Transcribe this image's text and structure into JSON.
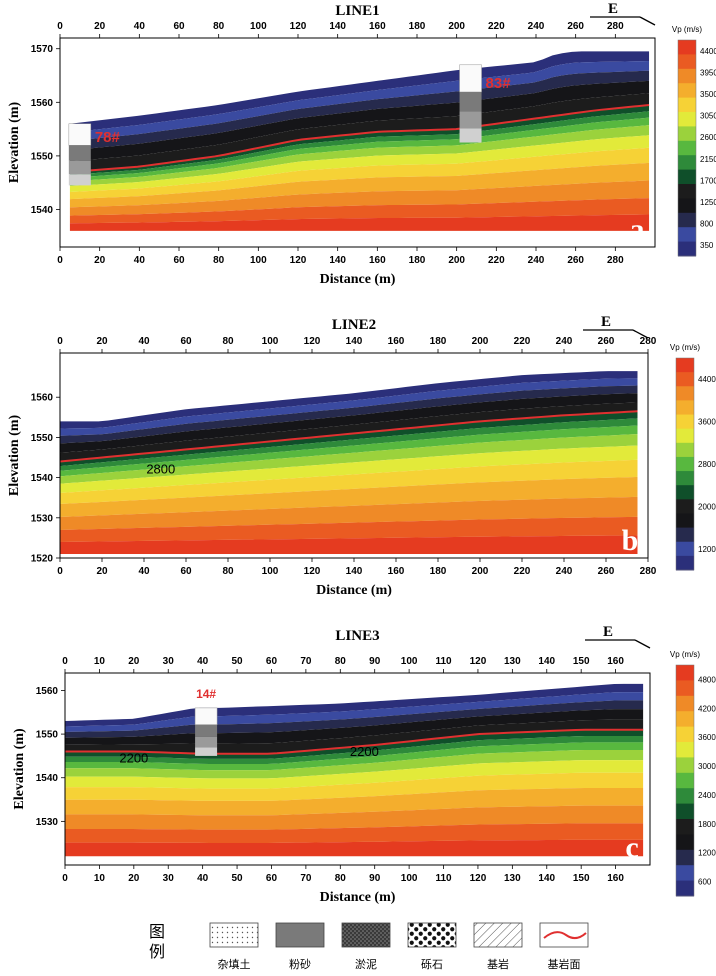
{
  "palette": [
    "#2b2f7a",
    "#3a4aa0",
    "#262a4d",
    "#151518",
    "#1c1c1c",
    "#0f4f2a",
    "#2e8a3a",
    "#58b83f",
    "#9bd23c",
    "#e2ea3a",
    "#f6d236",
    "#f4ae2d",
    "#ef8a27",
    "#ea5b22",
    "#e53b20"
  ],
  "boundary_color": "#e03030",
  "direction_label": "E",
  "chart_data": [
    {
      "type": "heatmap",
      "panel": "a",
      "title": "LINE1",
      "xlabel": "Distance (m)",
      "ylabel": "Elevation (m)",
      "xlim": [
        0,
        300
      ],
      "ylim": [
        1533,
        1572
      ],
      "xticks": [
        0,
        20,
        40,
        60,
        80,
        100,
        120,
        140,
        160,
        180,
        200,
        220,
        240,
        260,
        280
      ],
      "yticks": [
        1540,
        1550,
        1560,
        1570
      ],
      "colorbar_title": "Vp (m/s)",
      "colorbar_ticks": [
        "4400",
        "3950",
        "3500",
        "3050",
        "2600",
        "2150",
        "1700",
        "1250",
        "800",
        "350"
      ],
      "surface": {
        "x": [
          5,
          40,
          80,
          120,
          160,
          200,
          240,
          250,
          260,
          297
        ],
        "y": [
          1556,
          1557.5,
          1559.5,
          1562,
          1564,
          1566,
          1567.5,
          1569,
          1569.5,
          1569.5
        ]
      },
      "bedrock": {
        "x": [
          5,
          40,
          80,
          120,
          160,
          200,
          240,
          270,
          297
        ],
        "y": [
          1547,
          1548,
          1550,
          1553,
          1554.5,
          1555,
          1557,
          1558.5,
          1559.5
        ]
      },
      "bottom": {
        "x": [
          5,
          297
        ],
        "y": [
          1536,
          1536
        ]
      },
      "contour_label": "",
      "boreholes": [
        {
          "label": "78#",
          "x": 10,
          "top": 1556,
          "bottom": 1544.5
        },
        {
          "label": "83#",
          "x": 207,
          "top": 1567,
          "bottom": 1552.5
        }
      ]
    },
    {
      "type": "heatmap",
      "panel": "b",
      "title": "LINE2",
      "xlabel": "Distance (m)",
      "ylabel": "Elevation (m)",
      "xlim": [
        0,
        280
      ],
      "ylim": [
        1520,
        1571
      ],
      "xticks": [
        0,
        20,
        40,
        60,
        80,
        100,
        120,
        140,
        160,
        180,
        200,
        220,
        240,
        260,
        280
      ],
      "yticks": [
        1520,
        1530,
        1540,
        1550,
        1560
      ],
      "colorbar_title": "Vp (m/s)",
      "colorbar_ticks": [
        "4400",
        "3600",
        "2800",
        "2000",
        "1200"
      ],
      "surface": {
        "x": [
          0,
          20,
          60,
          100,
          140,
          180,
          220,
          260,
          275
        ],
        "y": [
          1554,
          1554,
          1557,
          1559,
          1561,
          1563.5,
          1565.5,
          1566.5,
          1566.5
        ]
      },
      "bedrock": {
        "x": [
          0,
          40,
          80,
          120,
          160,
          200,
          240,
          275
        ],
        "y": [
          1544,
          1546,
          1548,
          1550,
          1552,
          1554,
          1555.5,
          1556.5
        ]
      },
      "bottom": {
        "x": [
          0,
          275
        ],
        "y": [
          1521,
          1521
        ]
      },
      "contour_label": "2800",
      "contour_label_pos": {
        "x": 48,
        "y": 1541
      },
      "boreholes": []
    },
    {
      "type": "heatmap",
      "panel": "c",
      "title": "LINE3",
      "xlabel": "Distance (m)",
      "ylabel": "Elevation (m)",
      "xlim": [
        0,
        170
      ],
      "ylim": [
        1520,
        1564
      ],
      "xticks": [
        0,
        10,
        20,
        30,
        40,
        50,
        60,
        70,
        80,
        90,
        100,
        110,
        120,
        130,
        140,
        150,
        160
      ],
      "yticks": [
        1530,
        1540,
        1550,
        1560
      ],
      "colorbar_title": "Vp (m/s)",
      "colorbar_ticks": [
        "4800",
        "4200",
        "3600",
        "3000",
        "2400",
        "1800",
        "1200",
        "600"
      ],
      "surface": {
        "x": [
          0,
          20,
          38,
          45,
          80,
          120,
          160,
          168
        ],
        "y": [
          1553,
          1553.5,
          1556,
          1556,
          1557,
          1559,
          1561.5,
          1561.5
        ]
      },
      "bedrock": {
        "x": [
          0,
          20,
          40,
          60,
          90,
          120,
          150,
          168
        ],
        "y": [
          1546,
          1546,
          1545.5,
          1545.5,
          1547.5,
          1550,
          1551,
          1551
        ]
      },
      "bottom": {
        "x": [
          0,
          168
        ],
        "y": [
          1522,
          1522
        ]
      },
      "contour_label": "2200",
      "contour_label_pos": {
        "x": 20,
        "y": 1543.5
      },
      "contour_label2": "2200",
      "contour_label2_pos": {
        "x": 87,
        "y": 1545
      },
      "boreholes": [
        {
          "label": "14#",
          "x": 41,
          "top": 1556,
          "bottom": 1545
        }
      ]
    }
  ],
  "legend": {
    "title": "图例",
    "items": [
      {
        "label": "杂填土",
        "pattern": "dots"
      },
      {
        "label": "粉砂",
        "pattern": "grey"
      },
      {
        "label": "淤泥",
        "pattern": "dark"
      },
      {
        "label": "砾石",
        "pattern": "gravel"
      },
      {
        "label": "基岩",
        "pattern": "hatch"
      },
      {
        "label": "基岩面",
        "pattern": "line"
      }
    ]
  }
}
